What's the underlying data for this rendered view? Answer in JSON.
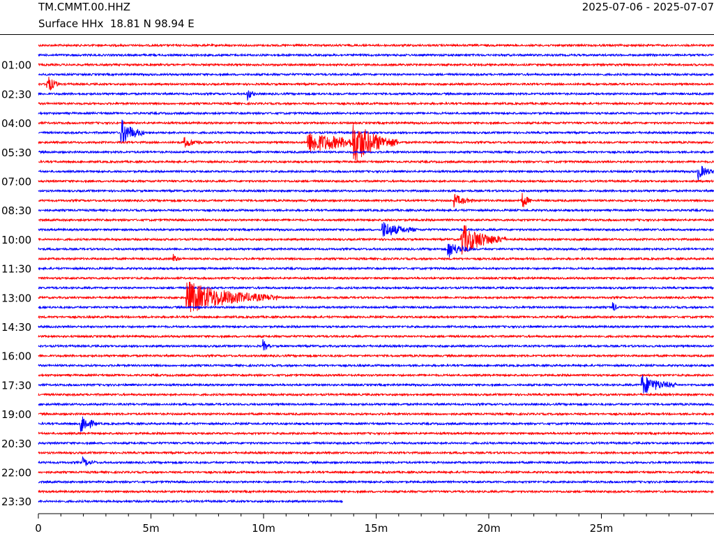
{
  "header": {
    "station": "TM.CMMT.00.HHZ",
    "location": "Surface HHx  18.81 N 98.94 E",
    "date_range": "2025-07-06 - 2025-07-07"
  },
  "chart_data": {
    "type": "line",
    "title": "TM.CMMT.00.HHZ",
    "xlabel": "",
    "ylabel": "",
    "x_range_minutes": [
      0,
      30
    ],
    "x_ticks": [
      {
        "value": 0,
        "label": "0"
      },
      {
        "value": 5,
        "label": "5m"
      },
      {
        "value": 10,
        "label": "10m"
      },
      {
        "value": 15,
        "label": "15m"
      },
      {
        "value": 20,
        "label": "20m"
      },
      {
        "value": 25,
        "label": "25m"
      }
    ],
    "y_tick_labels": [
      "01:00",
      "02:30",
      "04:00",
      "05:30",
      "07:00",
      "08:30",
      "10:00",
      "11:30",
      "13:00",
      "14:30",
      "16:00",
      "17:30",
      "19:00",
      "20:30",
      "22:00",
      "23:30"
    ],
    "row_count": 48,
    "row_minutes": 30,
    "colors": [
      "#ff0000",
      "#0000ff"
    ],
    "last_row_end_minute": 13.5,
    "events": [
      {
        "row": 4,
        "minute": 0.4,
        "amplitude": 1.5,
        "duration": 0.5
      },
      {
        "row": 5,
        "minute": 9.3,
        "amplitude": 0.9,
        "duration": 0.3
      },
      {
        "row": 9,
        "minute": 3.7,
        "amplitude": 2.0,
        "duration": 1.0
      },
      {
        "row": 10,
        "minute": 6.5,
        "amplitude": 0.8,
        "duration": 0.8
      },
      {
        "row": 10,
        "minute": 12.0,
        "amplitude": 1.6,
        "duration": 4.0
      },
      {
        "row": 10,
        "minute": 14.0,
        "amplitude": 3.5,
        "duration": 2.0
      },
      {
        "row": 13,
        "minute": 29.3,
        "amplitude": 1.2,
        "duration": 0.7
      },
      {
        "row": 16,
        "minute": 18.5,
        "amplitude": 0.9,
        "duration": 0.8
      },
      {
        "row": 16,
        "minute": 21.5,
        "amplitude": 1.2,
        "duration": 0.4
      },
      {
        "row": 19,
        "minute": 15.3,
        "amplitude": 1.3,
        "duration": 1.5
      },
      {
        "row": 20,
        "minute": 18.8,
        "amplitude": 2.5,
        "duration": 2.0
      },
      {
        "row": 21,
        "minute": 18.2,
        "amplitude": 1.3,
        "duration": 1.0
      },
      {
        "row": 22,
        "minute": 6.0,
        "amplitude": 0.6,
        "duration": 0.3
      },
      {
        "row": 26,
        "minute": 6.6,
        "amplitude": 2.6,
        "duration": 4.0
      },
      {
        "row": 27,
        "minute": 25.5,
        "amplitude": 1.0,
        "duration": 0.2
      },
      {
        "row": 31,
        "minute": 10.0,
        "amplitude": 0.8,
        "duration": 0.3
      },
      {
        "row": 35,
        "minute": 26.8,
        "amplitude": 1.6,
        "duration": 1.5
      },
      {
        "row": 39,
        "minute": 1.9,
        "amplitude": 1.6,
        "duration": 0.7
      },
      {
        "row": 43,
        "minute": 2.0,
        "amplitude": 0.6,
        "duration": 0.6
      }
    ]
  }
}
